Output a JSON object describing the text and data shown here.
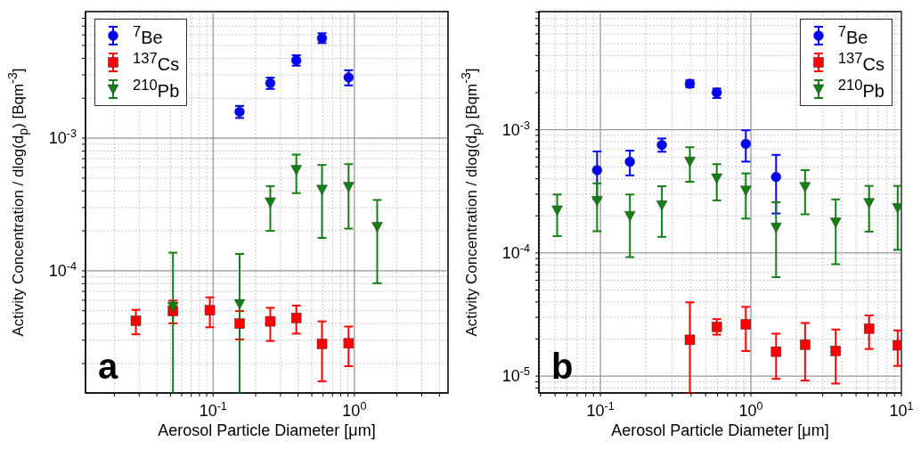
{
  "chart_data": [
    {
      "type": "scatter",
      "xlabel": "Aerosol Particle Diameter [μm]",
      "ylabel": "Activity Concentration / dlog(d$_{p}$) [Bqm$^{-3}$]",
      "log": "xy",
      "grid": true,
      "legend": "top left",
      "annotations": [
        "a"
      ],
      "xlim": [
        0.0125,
        4.6
      ],
      "ylim": [
        1.2e-05,
        0.009
      ],
      "xticks": [
        {
          "value": 0.02,
          "label": null
        },
        {
          "value": 0.03,
          "label": null
        },
        {
          "value": 0.04,
          "label": null
        },
        {
          "value": 0.05,
          "label": null
        },
        {
          "value": 0.06,
          "label": null
        },
        {
          "value": 0.07,
          "label": null
        },
        {
          "value": 0.08,
          "label": null
        },
        {
          "value": 0.09,
          "label": null
        },
        {
          "value": 0.1,
          "label": "10$^{-1}$"
        },
        {
          "value": 0.2,
          "label": null
        },
        {
          "value": 0.3,
          "label": null
        },
        {
          "value": 0.4,
          "label": null
        },
        {
          "value": 0.5,
          "label": null
        },
        {
          "value": 0.6,
          "label": null
        },
        {
          "value": 0.7,
          "label": null
        },
        {
          "value": 0.8,
          "label": null
        },
        {
          "value": 0.9,
          "label": null
        },
        {
          "value": 1,
          "label": "10$^{0}$"
        },
        {
          "value": 2,
          "label": null
        },
        {
          "value": 3,
          "label": null
        },
        {
          "value": 4,
          "label": null
        }
      ],
      "yticks": [
        {
          "value": 2e-05,
          "label": null
        },
        {
          "value": 3e-05,
          "label": null
        },
        {
          "value": 4e-05,
          "label": null
        },
        {
          "value": 5e-05,
          "label": null
        },
        {
          "value": 6e-05,
          "label": null
        },
        {
          "value": 7e-05,
          "label": null
        },
        {
          "value": 8e-05,
          "label": null
        },
        {
          "value": 9e-05,
          "label": null
        },
        {
          "value": 0.0001,
          "label": "10$^{-4}$"
        },
        {
          "value": 0.0002,
          "label": null
        },
        {
          "value": 0.0003,
          "label": null
        },
        {
          "value": 0.0004,
          "label": null
        },
        {
          "value": 0.0005,
          "label": null
        },
        {
          "value": 0.0006,
          "label": null
        },
        {
          "value": 0.0007,
          "label": null
        },
        {
          "value": 0.0008,
          "label": null
        },
        {
          "value": 0.0009,
          "label": null
        },
        {
          "value": 0.001,
          "label": "10$^{-3}$"
        },
        {
          "value": 0.002,
          "label": null
        },
        {
          "value": 0.003,
          "label": null
        },
        {
          "value": 0.004,
          "label": null
        },
        {
          "value": 0.005,
          "label": null
        },
        {
          "value": 0.006,
          "label": null
        },
        {
          "value": 0.007,
          "label": null
        },
        {
          "value": 0.008,
          "label": null
        }
      ],
      "series": [
        {
          "name": "$^{7}$Be",
          "color": "#0000ff",
          "marker": "circle",
          "x": [
            0.154,
            0.254,
            0.388,
            0.59,
            0.91
          ],
          "values": [
            0.00158,
            0.0026,
            0.00386,
            0.00566,
            0.00287
          ],
          "errors": [
            [
              0.00142,
              0.00175
            ],
            [
              0.00235,
              0.00286
            ],
            [
              0.00352,
              0.00422
            ],
            [
              0.00521,
              0.00618
            ],
            [
              0.0025,
              0.00325
            ]
          ]
        },
        {
          "name": "$^{137}$Cs",
          "color": "#ff0000",
          "marker": "square",
          "x": [
            0.0284,
            0.052,
            0.0948,
            0.154,
            0.254,
            0.388,
            0.59,
            0.91
          ],
          "values": [
            4.2e-05,
            4.97e-05,
            5.04e-05,
            4e-05,
            4.16e-05,
            4.41e-05,
            2.81e-05,
            2.84e-05
          ],
          "errors": [
            [
              3.32e-05,
              5.08e-05
            ],
            [
              4.02e-05,
              5.96e-05
            ],
            [
              3.75e-05,
              6.31e-05
            ],
            [
              3.04e-05,
              4.97e-05
            ],
            [
              2.96e-05,
              5.26e-05
            ],
            [
              3.36e-05,
              5.47e-05
            ],
            [
              1.47e-05,
              4.16e-05
            ],
            [
              1.91e-05,
              3.8e-05
            ]
          ]
        },
        {
          "name": "$^{210}$Pb",
          "color": "#138013",
          "marker": "triangle",
          "x": [
            0.052,
            0.154,
            0.254,
            0.388,
            0.59,
            0.91,
            1.45
          ],
          "values": [
            5.37e-05,
            5.63e-05,
            0.000329,
            0.000577,
            0.00041,
            0.00043,
            0.000215
          ],
          "errors": [
            [
              1.2e-05,
              0.000137
            ],
            [
              1.2e-05,
              0.000134
            ],
            [
              0.0002,
              0.000435
            ],
            [
              0.000385,
              0.000752
            ],
            [
              0.000177,
              0.000628
            ],
            [
              0.000208,
              0.000637
            ],
            [
              8.06e-05,
              0.000342
            ]
          ]
        }
      ]
    },
    {
      "type": "scatter",
      "xlabel": "Aerosol Particle Diameter [μm]",
      "ylabel": "Activity Concentration / dlog(d$_{p}$) [Bqm$^{-3}$]",
      "log": "xy",
      "grid": true,
      "legend": "top right",
      "annotations": [
        "b"
      ],
      "xlim": [
        0.039,
        10
      ],
      "ylim": [
        7.3e-06,
        0.0091
      ],
      "xticks": [
        {
          "value": 0.04,
          "label": null
        },
        {
          "value": 0.05,
          "label": null
        },
        {
          "value": 0.06,
          "label": null
        },
        {
          "value": 0.07,
          "label": null
        },
        {
          "value": 0.08,
          "label": null
        },
        {
          "value": 0.09,
          "label": null
        },
        {
          "value": 0.1,
          "label": "10$^{-1}$"
        },
        {
          "value": 0.2,
          "label": null
        },
        {
          "value": 0.3,
          "label": null
        },
        {
          "value": 0.4,
          "label": null
        },
        {
          "value": 0.5,
          "label": null
        },
        {
          "value": 0.6,
          "label": null
        },
        {
          "value": 0.7,
          "label": null
        },
        {
          "value": 0.8,
          "label": null
        },
        {
          "value": 0.9,
          "label": null
        },
        {
          "value": 1,
          "label": "10$^{0}$"
        },
        {
          "value": 2,
          "label": null
        },
        {
          "value": 3,
          "label": null
        },
        {
          "value": 4,
          "label": null
        },
        {
          "value": 5,
          "label": null
        },
        {
          "value": 6,
          "label": null
        },
        {
          "value": 7,
          "label": null
        },
        {
          "value": 8,
          "label": null
        },
        {
          "value": 9,
          "label": null
        },
        {
          "value": 10,
          "label": "10$^{1}$"
        }
      ],
      "yticks": [
        {
          "value": 8e-06,
          "label": null
        },
        {
          "value": 9e-06,
          "label": null
        },
        {
          "value": 1e-05,
          "label": "10$^{-5}$"
        },
        {
          "value": 2e-05,
          "label": null
        },
        {
          "value": 3e-05,
          "label": null
        },
        {
          "value": 4e-05,
          "label": null
        },
        {
          "value": 5e-05,
          "label": null
        },
        {
          "value": 6e-05,
          "label": null
        },
        {
          "value": 7e-05,
          "label": null
        },
        {
          "value": 8e-05,
          "label": null
        },
        {
          "value": 9e-05,
          "label": null
        },
        {
          "value": 0.0001,
          "label": "10$^{-4}$"
        },
        {
          "value": 0.0002,
          "label": null
        },
        {
          "value": 0.0003,
          "label": null
        },
        {
          "value": 0.0004,
          "label": null
        },
        {
          "value": 0.0005,
          "label": null
        },
        {
          "value": 0.0006,
          "label": null
        },
        {
          "value": 0.0007,
          "label": null
        },
        {
          "value": 0.0008,
          "label": null
        },
        {
          "value": 0.0009,
          "label": null
        },
        {
          "value": 0.001,
          "label": "10$^{-3}$"
        },
        {
          "value": 0.002,
          "label": null
        },
        {
          "value": 0.003,
          "label": null
        },
        {
          "value": 0.004,
          "label": null
        },
        {
          "value": 0.005,
          "label": null
        },
        {
          "value": 0.006,
          "label": null
        },
        {
          "value": 0.007,
          "label": null
        },
        {
          "value": 0.008,
          "label": null
        },
        {
          "value": 0.009,
          "label": null
        }
      ],
      "series": [
        {
          "name": "$^{7}$Be",
          "color": "#0000ff",
          "marker": "circle",
          "x": [
            0.095,
            0.157,
            0.256,
            0.393,
            0.593,
            0.925,
            1.47
          ],
          "values": [
            0.00047,
            0.00055,
            0.000752,
            0.00236,
            0.002,
            0.000768,
            0.000414
          ],
          "errors": [
            [
              0.000274,
              0.000666
            ],
            [
              0.000426,
              0.000676
            ],
            [
              0.000663,
              0.000849
            ],
            [
              0.00221,
              0.00253
            ],
            [
              0.00181,
              0.00216
            ],
            [
              0.000551,
              0.000989
            ],
            [
              0.000209,
              0.000625
            ]
          ]
        },
        {
          "name": "$^{137}$Cs",
          "color": "#ff0000",
          "marker": "square",
          "x": [
            0.393,
            0.593,
            0.925,
            1.47,
            2.29,
            3.66,
            6.1,
            9.45
          ],
          "values": [
            1.97e-05,
            2.51e-05,
            2.63e-05,
            1.58e-05,
            1.8e-05,
            1.6e-05,
            2.43e-05,
            1.78e-05
          ],
          "errors": [
            [
              7.3e-06,
              3.97e-05
            ],
            [
              2.17e-05,
              2.9e-05
            ],
            [
              1.6e-05,
              3.65e-05
            ],
            [
              9.5e-06,
              2.21e-05
            ],
            [
              9.2e-06,
              2.7e-05
            ],
            [
              8.7e-06,
              2.39e-05
            ],
            [
              1.66e-05,
              3.11e-05
            ],
            [
              1.21e-05,
              2.35e-05
            ]
          ]
        },
        {
          "name": "$^{210}$Pb",
          "color": "#138013",
          "marker": "triangle",
          "x": [
            0.0516,
            0.095,
            0.157,
            0.256,
            0.393,
            0.593,
            0.925,
            1.47,
            2.29,
            3.66,
            6.1,
            9.45
          ],
          "values": [
            0.000222,
            0.000265,
            0.0002,
            0.000244,
            0.000553,
            0.000404,
            0.000322,
            0.000161,
            0.000344,
            0.000177,
            0.000255,
            0.000232
          ],
          "errors": [
            [
              0.000137,
              0.000298
            ],
            [
              0.00015,
              0.000367
            ],
            [
              9.24e-05,
              0.000298
            ],
            [
              0.000135,
              0.000348
            ],
            [
              0.000378,
              0.000721
            ],
            [
              0.000267,
              0.000525
            ],
            [
              0.00019,
              0.000442
            ],
            [
              6.35e-05,
              0.000258
            ],
            [
              0.000206,
              0.00047
            ],
            [
              8.1e-05,
              0.000272
            ],
            [
              0.000149,
              0.00035
            ],
            [
              0.000106,
              0.00035
            ]
          ]
        }
      ]
    }
  ]
}
